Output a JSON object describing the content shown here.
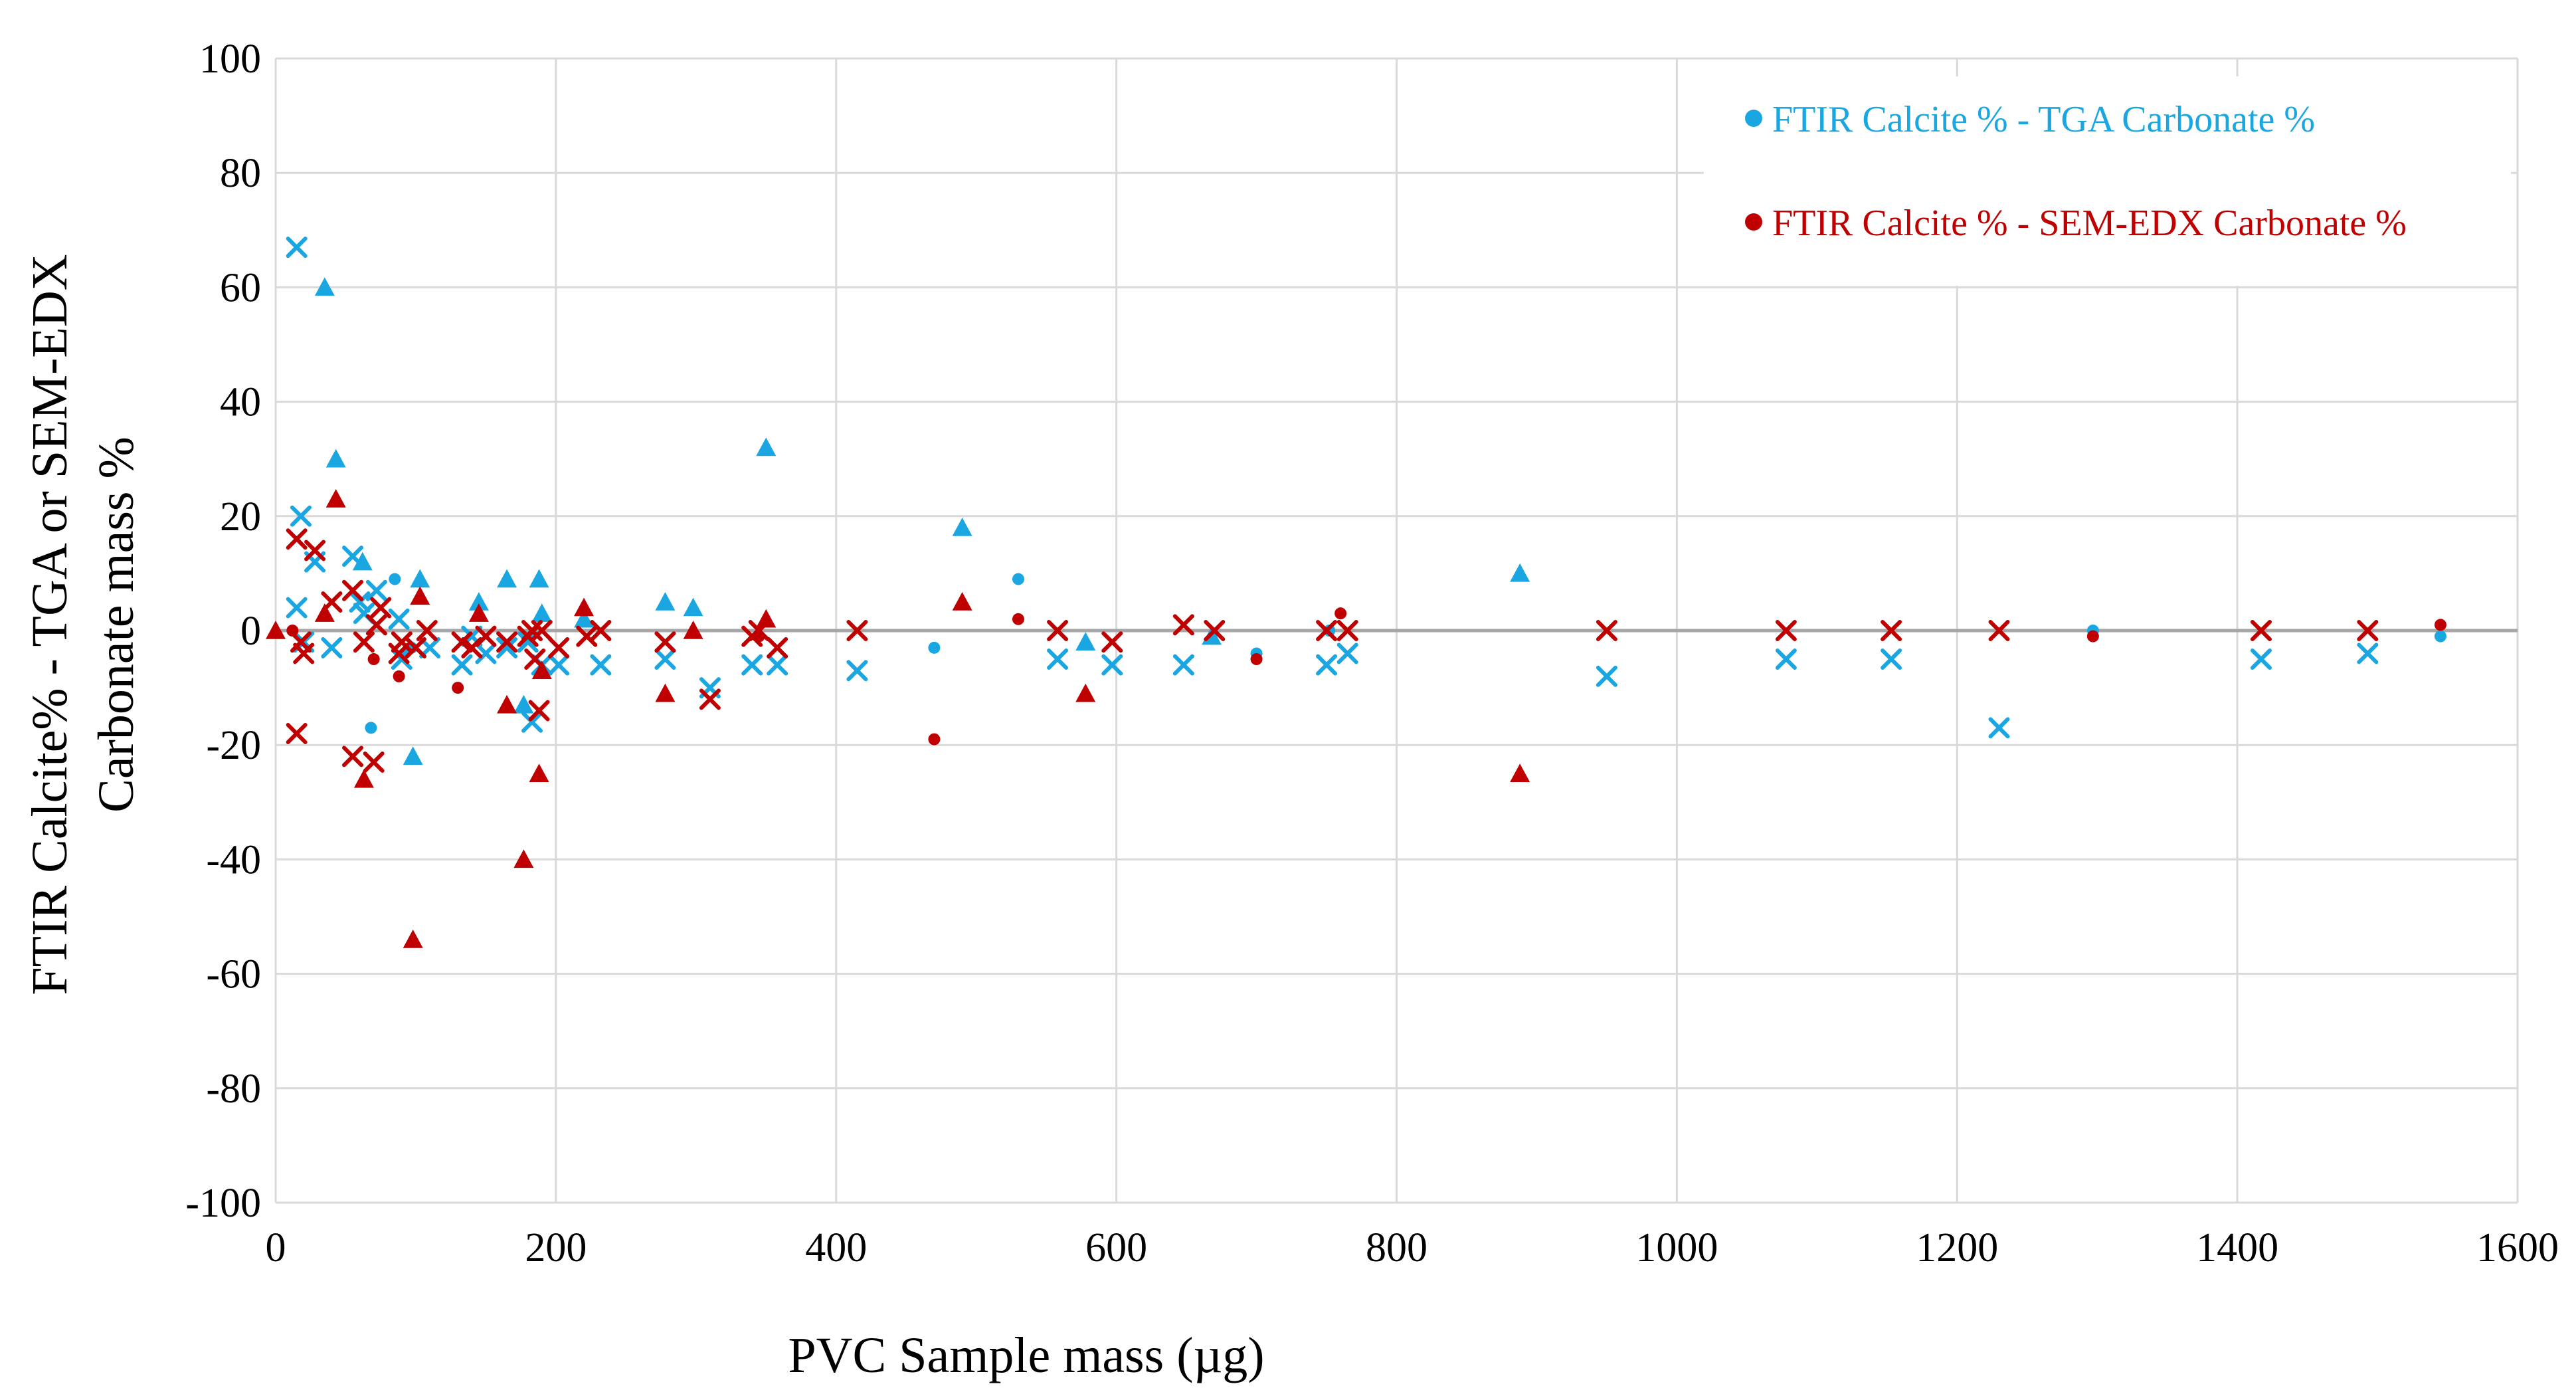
{
  "chart_data": {
    "type": "scatter",
    "title": "",
    "xlabel": "PVC Sample mass (µg)",
    "ylabel": "FTIR Calcite% - TGA or SEM-EDX Carbonate mass %",
    "ylabel_lines": [
      "FTIR Calcite% - TGA or SEM-EDX",
      "Carbonate mass %"
    ],
    "xlim": [
      0,
      1600
    ],
    "ylim": [
      -100,
      100
    ],
    "x_ticks": [
      "0",
      "200",
      "400",
      "600",
      "800",
      "1000",
      "1200",
      "1400",
      "1600"
    ],
    "y_ticks": [
      "100",
      "80",
      "60",
      "40",
      "20",
      "0",
      "-20",
      "-40",
      "-60",
      "-80",
      "-100"
    ],
    "grid": true,
    "legend_position": "top-right",
    "colors": {
      "tga": "#1aa6e0",
      "sem": "#c00000",
      "grid": "#d9d9d9",
      "axis": "#a6a6a6"
    },
    "series": [
      {
        "name": "FTIR Calcite % - TGA Carbonate %",
        "color": "#1aa6e0",
        "circles": [
          [
            68,
            -17
          ],
          [
            85,
            9
          ],
          [
            92,
            -4
          ],
          [
            97,
            -3
          ],
          [
            470,
            -3
          ],
          [
            530,
            9
          ],
          [
            700,
            -4
          ],
          [
            752,
            0
          ],
          [
            1297,
            0
          ],
          [
            1545,
            -1
          ]
        ],
        "triangles": [
          [
            35,
            60
          ],
          [
            43,
            30
          ],
          [
            62,
            12
          ],
          [
            98,
            -22
          ],
          [
            103,
            9
          ],
          [
            145,
            5
          ],
          [
            165,
            9
          ],
          [
            177,
            -13
          ],
          [
            188,
            9
          ],
          [
            190,
            3
          ],
          [
            220,
            2
          ],
          [
            278,
            5
          ],
          [
            298,
            4
          ],
          [
            350,
            32
          ],
          [
            490,
            18
          ],
          [
            578,
            -2
          ],
          [
            668,
            -1
          ],
          [
            888,
            10
          ]
        ],
        "crosses": [
          [
            15,
            67
          ],
          [
            15,
            4
          ],
          [
            18,
            20
          ],
          [
            20,
            -2
          ],
          [
            28,
            12
          ],
          [
            40,
            -3
          ],
          [
            55,
            13
          ],
          [
            60,
            5
          ],
          [
            63,
            3
          ],
          [
            72,
            7
          ],
          [
            88,
            2
          ],
          [
            90,
            -5
          ],
          [
            110,
            -3
          ],
          [
            133,
            -6
          ],
          [
            140,
            -1
          ],
          [
            150,
            -4
          ],
          [
            165,
            -3
          ],
          [
            180,
            -2
          ],
          [
            183,
            -16
          ],
          [
            190,
            -6
          ],
          [
            202,
            -6
          ],
          [
            232,
            -6
          ],
          [
            278,
            -5
          ],
          [
            310,
            -10
          ],
          [
            340,
            -6
          ],
          [
            358,
            -6
          ],
          [
            415,
            -7
          ],
          [
            558,
            -5
          ],
          [
            597,
            -6
          ],
          [
            648,
            -6
          ],
          [
            750,
            -6
          ],
          [
            765,
            -4
          ],
          [
            950,
            -8
          ],
          [
            1078,
            -5
          ],
          [
            1153,
            -5
          ],
          [
            1230,
            -17
          ],
          [
            1417,
            -5
          ],
          [
            1493,
            -4
          ]
        ]
      },
      {
        "name": "FTIR Calcite % - SEM-EDX Carbonate %",
        "color": "#c00000",
        "circles": [
          [
            12,
            0
          ],
          [
            70,
            -5
          ],
          [
            88,
            -8
          ],
          [
            130,
            -10
          ],
          [
            345,
            -1
          ],
          [
            470,
            -19
          ],
          [
            530,
            2
          ],
          [
            700,
            -5
          ],
          [
            760,
            3
          ],
          [
            1297,
            -1
          ],
          [
            1545,
            1
          ]
        ],
        "triangles": [
          [
            0,
            0
          ],
          [
            35,
            3
          ],
          [
            43,
            23
          ],
          [
            63,
            -26
          ],
          [
            98,
            -54
          ],
          [
            103,
            6
          ],
          [
            145,
            3
          ],
          [
            165,
            -13
          ],
          [
            177,
            -40
          ],
          [
            188,
            -25
          ],
          [
            190,
            -7
          ],
          [
            220,
            4
          ],
          [
            278,
            -11
          ],
          [
            298,
            0
          ],
          [
            350,
            2
          ],
          [
            490,
            5
          ],
          [
            578,
            -11
          ],
          [
            888,
            -25
          ]
        ],
        "crosses": [
          [
            15,
            16
          ],
          [
            15,
            -18
          ],
          [
            18,
            -2
          ],
          [
            20,
            -4
          ],
          [
            28,
            14
          ],
          [
            40,
            5
          ],
          [
            55,
            -22
          ],
          [
            55,
            7
          ],
          [
            63,
            -2
          ],
          [
            70,
            -23
          ],
          [
            72,
            1
          ],
          [
            75,
            4
          ],
          [
            88,
            -4
          ],
          [
            90,
            -2
          ],
          [
            100,
            -3
          ],
          [
            108,
            0
          ],
          [
            133,
            -2
          ],
          [
            140,
            -3
          ],
          [
            150,
            -1
          ],
          [
            165,
            -2
          ],
          [
            180,
            -1
          ],
          [
            183,
            0
          ],
          [
            185,
            -5
          ],
          [
            188,
            -14
          ],
          [
            190,
            0
          ],
          [
            202,
            -3
          ],
          [
            222,
            -1
          ],
          [
            232,
            0
          ],
          [
            278,
            -2
          ],
          [
            310,
            -12
          ],
          [
            340,
            -1
          ],
          [
            345,
            0
          ],
          [
            358,
            -3
          ],
          [
            415,
            0
          ],
          [
            558,
            0
          ],
          [
            597,
            -2
          ],
          [
            648,
            1
          ],
          [
            670,
            0
          ],
          [
            750,
            0
          ],
          [
            765,
            0
          ],
          [
            950,
            0
          ],
          [
            1078,
            0
          ],
          [
            1153,
            0
          ],
          [
            1230,
            0
          ],
          [
            1417,
            0
          ],
          [
            1493,
            0
          ]
        ]
      }
    ]
  }
}
